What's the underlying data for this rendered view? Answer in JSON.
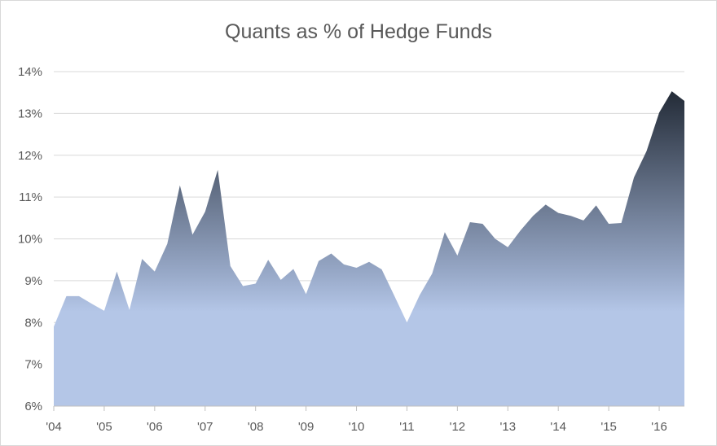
{
  "chart_data": {
    "type": "area",
    "title": "Quants as % of Hedge Funds",
    "xlabel": "",
    "ylabel": "",
    "x_tick_labels": [
      "'04",
      "'05",
      "'06",
      "'07",
      "'08",
      "'09",
      "'10",
      "'11",
      "'12",
      "'13",
      "'14",
      "'15",
      "'16"
    ],
    "y_tick_labels": [
      "6%",
      "7%",
      "8%",
      "9%",
      "10%",
      "11%",
      "12%",
      "13%",
      "14%"
    ],
    "ylim": [
      6,
      14
    ],
    "grid": "horizontal",
    "legend": "none",
    "fill_gradient": {
      "top": "#232b37",
      "bottom": "#b4c6e7"
    },
    "series": [
      {
        "x": [
          2004.0,
          2004.25,
          2004.5,
          2004.75,
          2005.0,
          2005.25,
          2005.5,
          2005.75,
          2006.0,
          2006.25,
          2006.5,
          2006.75,
          2007.0,
          2007.25,
          2007.5,
          2007.75,
          2008.0,
          2008.25,
          2008.5,
          2008.75,
          2009.0,
          2009.25,
          2009.5,
          2009.75,
          2010.0,
          2010.25,
          2010.5,
          2010.75,
          2011.0,
          2011.25,
          2011.5,
          2011.75,
          2012.0,
          2012.25,
          2012.5,
          2012.75,
          2013.0,
          2013.25,
          2013.5,
          2013.75,
          2014.0,
          2014.25,
          2014.5,
          2014.75,
          2015.0,
          2015.25,
          2015.5,
          2015.75,
          2016.0,
          2016.25,
          2016.5
        ],
        "values": [
          7.9,
          8.63,
          8.63,
          8.45,
          8.28,
          9.22,
          8.3,
          9.52,
          9.22,
          9.88,
          11.28,
          10.1,
          10.65,
          11.65,
          9.35,
          8.87,
          8.93,
          9.5,
          9.02,
          9.28,
          8.68,
          9.47,
          9.65,
          9.39,
          9.31,
          9.45,
          9.27,
          8.64,
          8.0,
          8.65,
          9.17,
          10.16,
          9.6,
          10.4,
          10.36,
          10.0,
          9.8,
          10.2,
          10.55,
          10.82,
          10.62,
          10.55,
          10.44,
          10.8,
          10.36,
          10.38,
          11.47,
          12.1,
          13.02,
          13.53,
          13.3
        ]
      }
    ]
  }
}
